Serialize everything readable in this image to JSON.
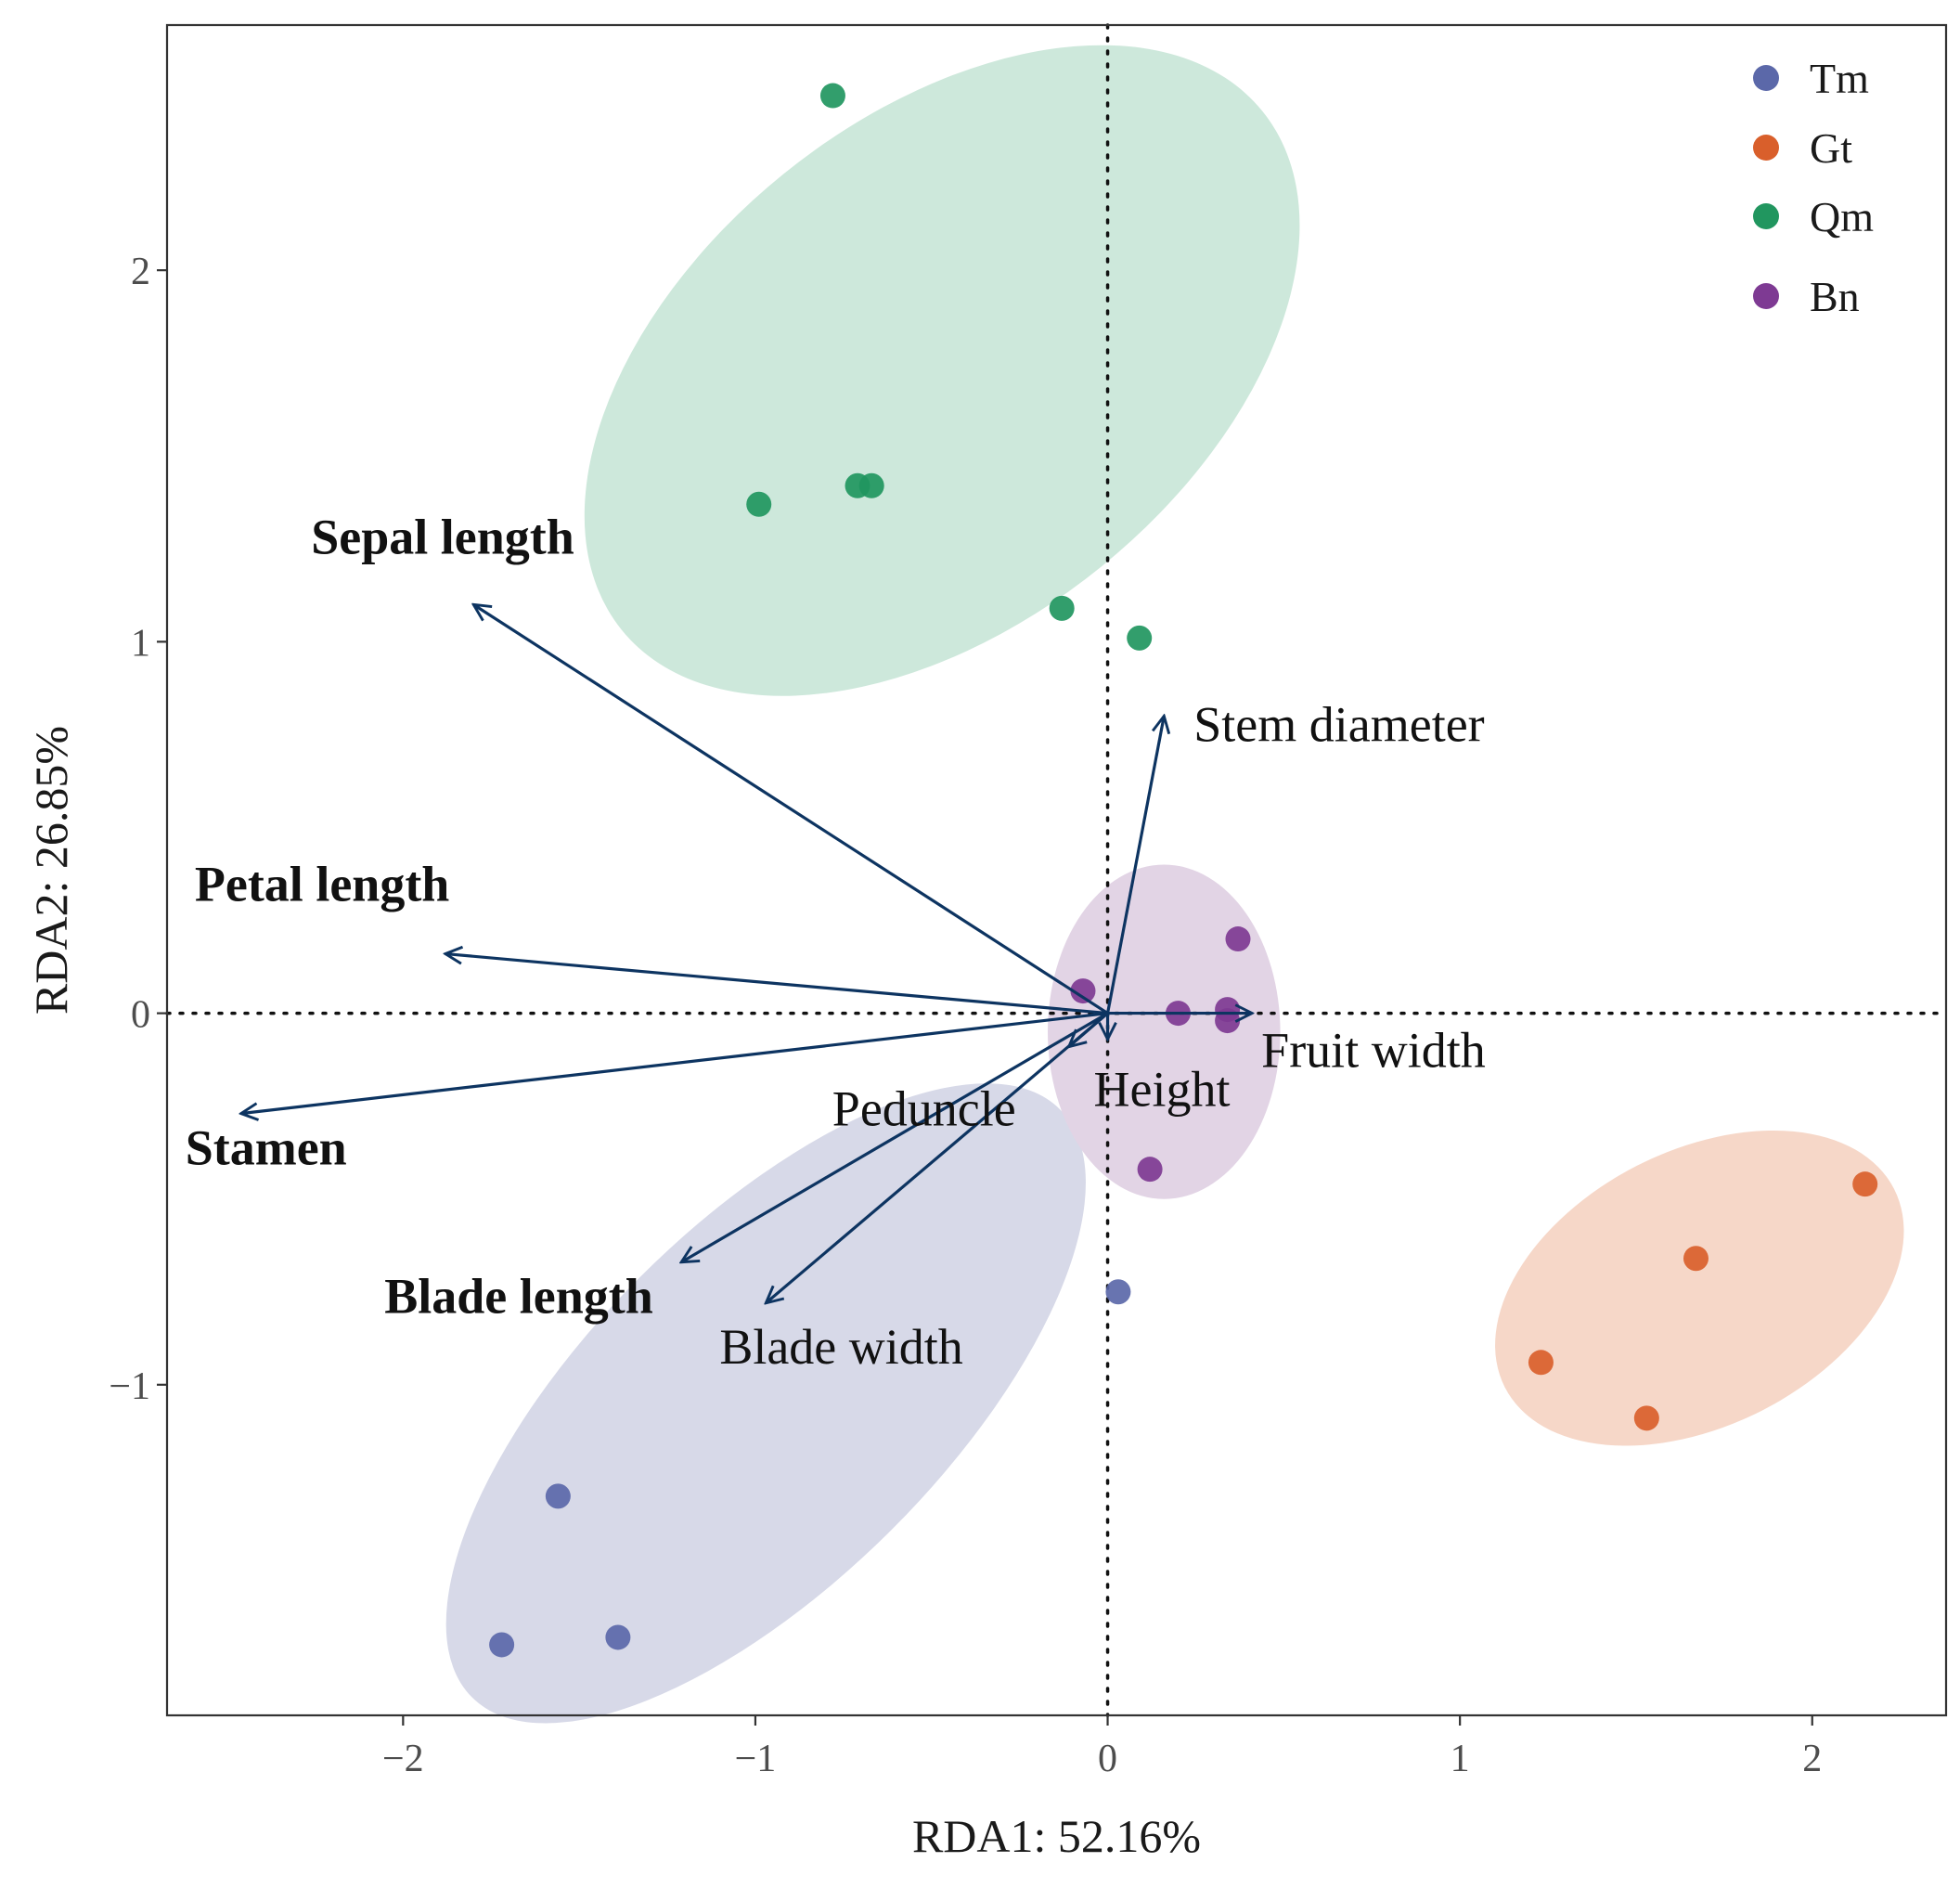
{
  "chart_data": {
    "type": "scatter",
    "xlabel": "RDA1: 52.16%",
    "ylabel": "RDA2: 26.85%",
    "xlim": [
      -2.67,
      2.38
    ],
    "ylim": [
      -1.89,
      2.66
    ],
    "xticks": [
      -2,
      -1,
      0,
      1,
      2
    ],
    "yticks": [
      -1,
      0,
      1,
      2
    ],
    "xtick_labels": [
      "−2",
      "−1",
      "0",
      "1",
      "2"
    ],
    "ytick_labels": [
      "−1",
      "0",
      "1",
      "2"
    ],
    "grid": false,
    "reference_lines": [
      {
        "axis": "x",
        "value": 0
      },
      {
        "axis": "y",
        "value": 0
      }
    ],
    "legend_position": "top-right",
    "series": [
      {
        "name": "Tm",
        "color": "#5b68a9",
        "fill": "#d7d9e8",
        "points": [
          [
            0.03,
            -0.75
          ],
          [
            -1.56,
            -1.3
          ],
          [
            -1.72,
            -1.7
          ],
          [
            -1.39,
            -1.68
          ]
        ],
        "ellipse": {
          "cx": -0.97,
          "cy": -1.05,
          "rx": 1.18,
          "ry": 0.48,
          "angle_deg": 45
        }
      },
      {
        "name": "Gt",
        "color": "#d95f2b",
        "fill": "#f6d7c8",
        "points": [
          [
            2.15,
            -0.46
          ],
          [
            1.67,
            -0.66
          ],
          [
            1.23,
            -0.94
          ],
          [
            1.53,
            -1.09
          ]
        ],
        "ellipse": {
          "cx": 1.68,
          "cy": -0.74,
          "rx": 0.62,
          "ry": 0.37,
          "angle_deg": 27
        }
      },
      {
        "name": "Qm",
        "color": "#21965f",
        "fill": "#cde8db",
        "points": [
          [
            -0.78,
            2.47
          ],
          [
            -0.99,
            1.37
          ],
          [
            -0.71,
            1.42
          ],
          [
            -0.67,
            1.42
          ],
          [
            -0.13,
            1.09
          ],
          [
            0.09,
            1.01
          ]
        ],
        "ellipse": {
          "cx": -0.47,
          "cy": 1.73,
          "rx": 1.17,
          "ry": 0.68,
          "angle_deg": 39
        }
      },
      {
        "name": "Bn",
        "color": "#7e3a93",
        "fill": "#e2d4e5",
        "points": [
          [
            0.37,
            0.2
          ],
          [
            -0.07,
            0.06
          ],
          [
            0.2,
            0.0
          ],
          [
            0.34,
            0.01
          ],
          [
            0.34,
            -0.02
          ],
          [
            0.12,
            -0.42
          ]
        ],
        "ellipse": {
          "cx": 0.16,
          "cy": -0.05,
          "rx": 0.33,
          "ry": 0.45,
          "angle_deg": 0
        }
      }
    ],
    "vectors": [
      {
        "label": "Sepal length",
        "x": -1.8,
        "y": 1.1,
        "bold": true
      },
      {
        "label": "Petal length",
        "x": -1.88,
        "y": 0.16,
        "bold": true
      },
      {
        "label": "Stamen",
        "x": -2.46,
        "y": -0.27,
        "bold": true
      },
      {
        "label": "Blade length",
        "x": -1.21,
        "y": -0.67,
        "bold": true
      },
      {
        "label": "Blade width",
        "x": -0.97,
        "y": -0.78,
        "bold": false
      },
      {
        "label": "Stem diameter",
        "x": 0.16,
        "y": 0.8,
        "bold": false
      },
      {
        "label": "Fruit width",
        "x": 0.41,
        "y": 0.0,
        "bold": false
      },
      {
        "label": "Height",
        "x": 0.0,
        "y": -0.07,
        "bold": false
      },
      {
        "label": "Peduncle",
        "x": -0.11,
        "y": -0.09,
        "bold": false
      }
    ],
    "vector_color": "#0d3461"
  }
}
